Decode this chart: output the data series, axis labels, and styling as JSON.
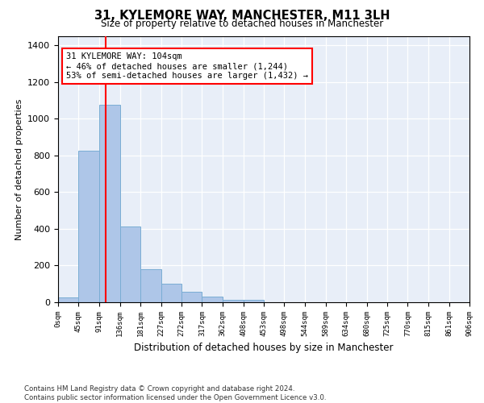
{
  "title": "31, KYLEMORE WAY, MANCHESTER, M11 3LH",
  "subtitle": "Size of property relative to detached houses in Manchester",
  "xlabel": "Distribution of detached houses by size in Manchester",
  "ylabel": "Number of detached properties",
  "bar_values": [
    25,
    825,
    1075,
    415,
    180,
    100,
    55,
    30,
    15,
    15,
    0,
    0,
    0,
    0,
    0,
    0,
    0,
    0,
    0,
    0
  ],
  "bin_edges": [
    0,
    45,
    91,
    136,
    181,
    227,
    272,
    317,
    362,
    408,
    453,
    498,
    544,
    589,
    634,
    680,
    725,
    770,
    815,
    861,
    906
  ],
  "tick_labels": [
    "0sqm",
    "45sqm",
    "91sqm",
    "136sqm",
    "181sqm",
    "227sqm",
    "272sqm",
    "317sqm",
    "362sqm",
    "408sqm",
    "453sqm",
    "498sqm",
    "544sqm",
    "589sqm",
    "634sqm",
    "680sqm",
    "725sqm",
    "770sqm",
    "815sqm",
    "861sqm",
    "906sqm"
  ],
  "bar_color": "#aec6e8",
  "bar_edgecolor": "#7aadd4",
  "vline_x": 104,
  "vline_color": "red",
  "ylim": [
    0,
    1450
  ],
  "annotation_text": "31 KYLEMORE WAY: 104sqm\n← 46% of detached houses are smaller (1,244)\n53% of semi-detached houses are larger (1,432) →",
  "annotation_box_color": "white",
  "annotation_box_edgecolor": "red",
  "footnote": "Contains HM Land Registry data © Crown copyright and database right 2024.\nContains public sector information licensed under the Open Government Licence v3.0.",
  "bg_color": "#e8eef8"
}
